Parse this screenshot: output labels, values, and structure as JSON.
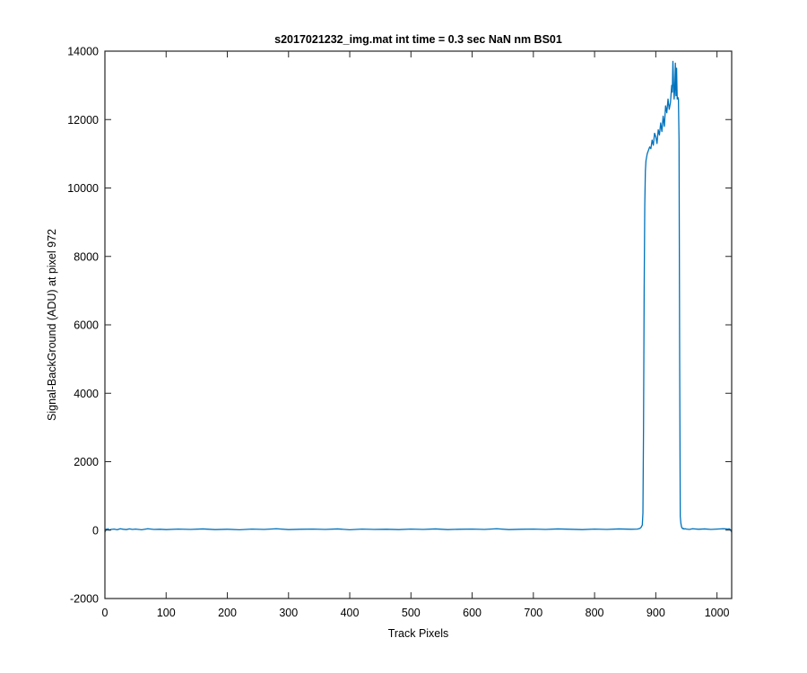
{
  "chart_data": {
    "type": "line",
    "title": "s2017021232_img.mat int time = 0.3 sec  NaN nm BS01",
    "xlabel": "Track Pixels",
    "ylabel": "Signal-BackGround (ADU) at pixel 972",
    "xlim": [
      0,
      1024
    ],
    "ylim": [
      -2000,
      14000
    ],
    "xticks": [
      0,
      100,
      200,
      300,
      400,
      500,
      600,
      700,
      800,
      900,
      1000
    ],
    "yticks": [
      -2000,
      0,
      2000,
      4000,
      6000,
      8000,
      10000,
      12000,
      14000
    ],
    "grid": false,
    "box": true,
    "series": [
      {
        "color": "#0072BD",
        "x": [
          0,
          1,
          2,
          3,
          5,
          7,
          10,
          15,
          20,
          25,
          30,
          35,
          40,
          45,
          50,
          60,
          70,
          80,
          90,
          100,
          120,
          140,
          160,
          180,
          200,
          220,
          240,
          260,
          280,
          300,
          320,
          340,
          360,
          380,
          400,
          420,
          440,
          460,
          480,
          500,
          520,
          540,
          560,
          580,
          600,
          620,
          640,
          660,
          680,
          700,
          720,
          740,
          760,
          780,
          800,
          820,
          840,
          860,
          870,
          874,
          876,
          878,
          879,
          880,
          881,
          882,
          883,
          884,
          885,
          886,
          888,
          890,
          892,
          894,
          896,
          898,
          900,
          902,
          904,
          906,
          908,
          910,
          912,
          914,
          916,
          918,
          920,
          922,
          924,
          926,
          927,
          928,
          929,
          930,
          931,
          932,
          933,
          934,
          935,
          936,
          937,
          938,
          939,
          940,
          941,
          942,
          943,
          944,
          945,
          946,
          948,
          950,
          955,
          960,
          970,
          980,
          990,
          1000,
          1010,
          1015,
          1018,
          1020,
          1022,
          1024
        ],
        "y": [
          -60,
          -20,
          30,
          10,
          40,
          0,
          20,
          30,
          10,
          40,
          25,
          15,
          35,
          20,
          30,
          10,
          40,
          20,
          25,
          15,
          30,
          20,
          35,
          15,
          25,
          10,
          30,
          20,
          40,
          15,
          25,
          30,
          20,
          35,
          10,
          30,
          20,
          25,
          15,
          30,
          20,
          35,
          15,
          25,
          30,
          20,
          40,
          15,
          25,
          30,
          20,
          35,
          25,
          15,
          30,
          20,
          35,
          25,
          30,
          50,
          80,
          150,
          500,
          3000,
          7000,
          9500,
          10500,
          10800,
          10900,
          11000,
          11100,
          11200,
          11150,
          11400,
          11250,
          11600,
          11500,
          11300,
          11700,
          11550,
          11900,
          11650,
          12100,
          11800,
          12400,
          12200,
          12600,
          12300,
          12500,
          13000,
          12800,
          13700,
          13100,
          12600,
          12900,
          13650,
          12700,
          13500,
          12600,
          12650,
          12600,
          11400,
          5000,
          400,
          200,
          100,
          60,
          40,
          50,
          30,
          40,
          30,
          20,
          40,
          25,
          35,
          20,
          30,
          40,
          35,
          30,
          40,
          10,
          -60
        ]
      }
    ]
  }
}
